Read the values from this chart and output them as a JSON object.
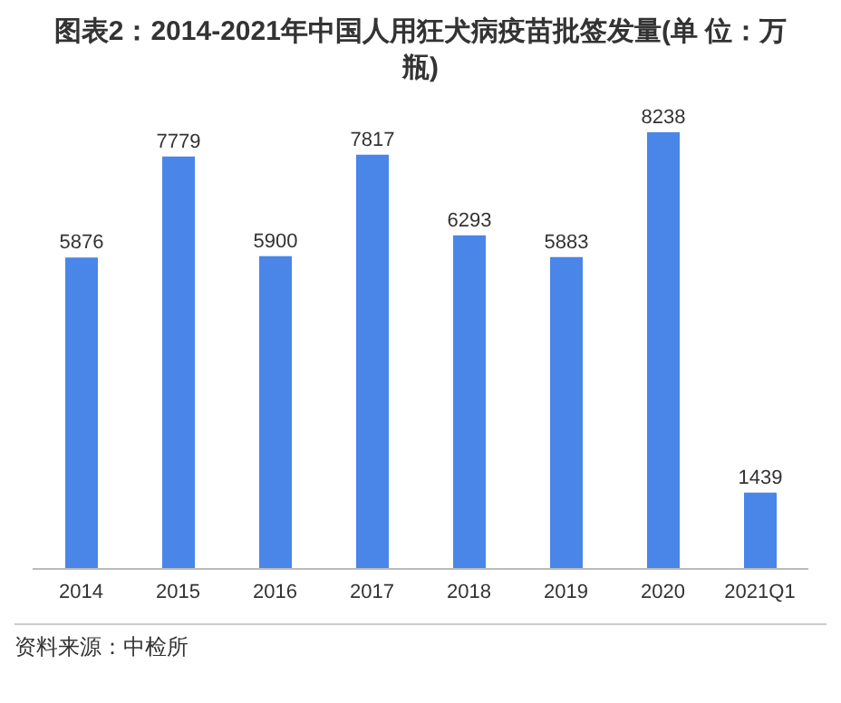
{
  "chart_data": {
    "type": "bar",
    "title": "图表2：2014-2021年中国人用狂犬病疫苗批签发量(单 位：万瓶)",
    "categories": [
      "2014",
      "2015",
      "2016",
      "2017",
      "2018",
      "2019",
      "2020",
      "2021Q1"
    ],
    "values": [
      5876,
      7779,
      5900,
      7817,
      6293,
      5883,
      8238,
      1439
    ],
    "color": "#4a86e8",
    "data_labels": true,
    "annotations": [
      "资料来源：中检所"
    ]
  }
}
